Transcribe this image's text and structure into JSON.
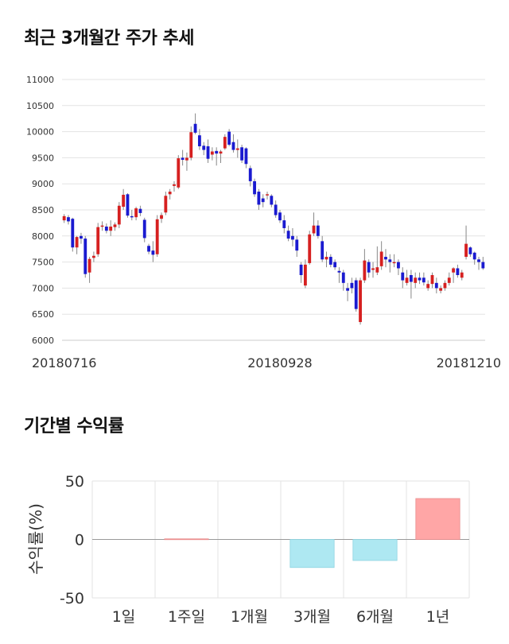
{
  "titles": {
    "price_trend": "최근 3개월간 주가 추세",
    "period_returns": "기간별 수익률"
  },
  "colors": {
    "up": "#d62020",
    "down": "#1a1ad0",
    "positive_bar": "#ffa6a6",
    "negative_bar": "#aee8f2",
    "wick": "#888888"
  },
  "chart_data": [
    {
      "type": "candlestick",
      "ylim": [
        6000,
        11000
      ],
      "yticks": [
        6000,
        6500,
        7000,
        7500,
        8000,
        8500,
        9000,
        9500,
        10000,
        10500,
        11000
      ],
      "xtick_labels": [
        {
          "index": 0,
          "label": "20180716"
        },
        {
          "index": 51,
          "label": "20180928"
        },
        {
          "index": 99,
          "label": "20181210"
        }
      ],
      "grid": true,
      "candles": [
        [
          8300,
          8420,
          8250,
          8380
        ],
        [
          8360,
          8400,
          8220,
          8280
        ],
        [
          8330,
          8350,
          7700,
          7780
        ],
        [
          7780,
          8000,
          7650,
          7980
        ],
        [
          8000,
          8060,
          7850,
          7950
        ],
        [
          7950,
          8000,
          7200,
          7270
        ],
        [
          7300,
          7600,
          7100,
          7560
        ],
        [
          7580,
          7700,
          7500,
          7620
        ],
        [
          7650,
          8250,
          7600,
          8170
        ],
        [
          8180,
          8280,
          8100,
          8200
        ],
        [
          8180,
          8240,
          8050,
          8100
        ],
        [
          8100,
          8300,
          8000,
          8180
        ],
        [
          8170,
          8260,
          8100,
          8220
        ],
        [
          8220,
          8650,
          8150,
          8580
        ],
        [
          8560,
          8900,
          8500,
          8790
        ],
        [
          8800,
          8820,
          8350,
          8390
        ],
        [
          8380,
          8500,
          8300,
          8360
        ],
        [
          8360,
          8560,
          8300,
          8530
        ],
        [
          8520,
          8580,
          8380,
          8440
        ],
        [
          8310,
          8350,
          7880,
          7960
        ],
        [
          7810,
          7850,
          7650,
          7700
        ],
        [
          7720,
          7900,
          7500,
          7640
        ],
        [
          7650,
          8400,
          7600,
          8320
        ],
        [
          8330,
          8450,
          8250,
          8400
        ],
        [
          8450,
          8850,
          8400,
          8770
        ],
        [
          8800,
          8900,
          8700,
          8850
        ],
        [
          8960,
          9050,
          8850,
          8990
        ],
        [
          8930,
          9550,
          8900,
          9490
        ],
        [
          9500,
          9650,
          9350,
          9460
        ],
        [
          9450,
          9600,
          9250,
          9500
        ],
        [
          9500,
          10100,
          9450,
          9990
        ],
        [
          10150,
          10350,
          9950,
          9980
        ],
        [
          9930,
          10050,
          9650,
          9720
        ],
        [
          9730,
          9800,
          9550,
          9650
        ],
        [
          9720,
          9850,
          9400,
          9480
        ],
        [
          9560,
          9700,
          9450,
          9620
        ],
        [
          9630,
          9700,
          9350,
          9580
        ],
        [
          9580,
          9650,
          9400,
          9620
        ],
        [
          9680,
          9950,
          9650,
          9900
        ],
        [
          10000,
          10050,
          9720,
          9750
        ],
        [
          9800,
          9950,
          9600,
          9650
        ],
        [
          9650,
          9850,
          9500,
          9680
        ],
        [
          9700,
          9750,
          9400,
          9450
        ],
        [
          9680,
          9700,
          9300,
          9380
        ],
        [
          9300,
          9350,
          8950,
          9050
        ],
        [
          9050,
          9100,
          8750,
          8800
        ],
        [
          8850,
          8900,
          8500,
          8600
        ],
        [
          8720,
          8800,
          8550,
          8650
        ],
        [
          8780,
          8850,
          8700,
          8800
        ],
        [
          8770,
          8800,
          8550,
          8600
        ],
        [
          8600,
          8680,
          8350,
          8400
        ],
        [
          8450,
          8500,
          8250,
          8300
        ],
        [
          8300,
          8400,
          8050,
          8150
        ],
        [
          8100,
          8200,
          7900,
          7950
        ],
        [
          8000,
          8150,
          7800,
          7930
        ],
        [
          7930,
          8000,
          7600,
          7720
        ],
        [
          7450,
          7500,
          7100,
          7250
        ],
        [
          7050,
          7550,
          7000,
          7450
        ],
        [
          7480,
          8100,
          7450,
          8030
        ],
        [
          8050,
          8450,
          8000,
          8200
        ],
        [
          8200,
          8300,
          7950,
          8000
        ],
        [
          7900,
          8000,
          7500,
          7550
        ],
        [
          7550,
          7700,
          7400,
          7600
        ],
        [
          7600,
          7650,
          7400,
          7450
        ],
        [
          7500,
          7550,
          7350,
          7400
        ],
        [
          7330,
          7400,
          7100,
          7300
        ],
        [
          7300,
          7350,
          6950,
          7100
        ],
        [
          7000,
          7100,
          6750,
          6950
        ],
        [
          7100,
          7200,
          6900,
          7000
        ],
        [
          7150,
          7200,
          6550,
          6600
        ],
        [
          6350,
          7200,
          6300,
          7150
        ],
        [
          7150,
          7750,
          7100,
          7530
        ],
        [
          7500,
          7550,
          7200,
          7300
        ],
        [
          7350,
          7500,
          7200,
          7380
        ],
        [
          7300,
          7800,
          7250,
          7400
        ],
        [
          7420,
          7900,
          7350,
          7700
        ],
        [
          7600,
          7750,
          7400,
          7550
        ],
        [
          7550,
          7650,
          7300,
          7500
        ],
        [
          7500,
          7650,
          7400,
          7500
        ],
        [
          7500,
          7550,
          7250,
          7380
        ],
        [
          7300,
          7400,
          7000,
          7150
        ],
        [
          7100,
          7350,
          7050,
          7200
        ],
        [
          7250,
          7350,
          6800,
          7120
        ],
        [
          7100,
          7300,
          7000,
          7200
        ],
        [
          7200,
          7300,
          7080,
          7150
        ],
        [
          7200,
          7300,
          7050,
          7110
        ],
        [
          7000,
          7150,
          6950,
          7080
        ],
        [
          7080,
          7300,
          7000,
          7250
        ],
        [
          7100,
          7200,
          6900,
          7000
        ],
        [
          6950,
          7050,
          6900,
          7000
        ],
        [
          7000,
          7150,
          6950,
          7100
        ],
        [
          7100,
          7300,
          7050,
          7200
        ],
        [
          7300,
          7400,
          7100,
          7380
        ],
        [
          7380,
          7450,
          7200,
          7250
        ],
        [
          7200,
          7350,
          7150,
          7300
        ],
        [
          7600,
          8200,
          7550,
          7850
        ],
        [
          7780,
          7800,
          7600,
          7650
        ],
        [
          7680,
          7700,
          7450,
          7550
        ],
        [
          7550,
          7600,
          7350,
          7500
        ],
        [
          7500,
          7600,
          7350,
          7380
        ]
      ]
    },
    {
      "type": "bar",
      "ylabel": "수익률(%)",
      "ylim": [
        -50,
        50
      ],
      "yticks": [
        -50,
        0,
        50
      ],
      "categories": [
        "1일",
        "1주일",
        "1개월",
        "3개월",
        "6개월",
        "1년"
      ],
      "values": [
        0,
        0.5,
        0,
        -24,
        -18,
        35
      ],
      "grid": true
    }
  ]
}
